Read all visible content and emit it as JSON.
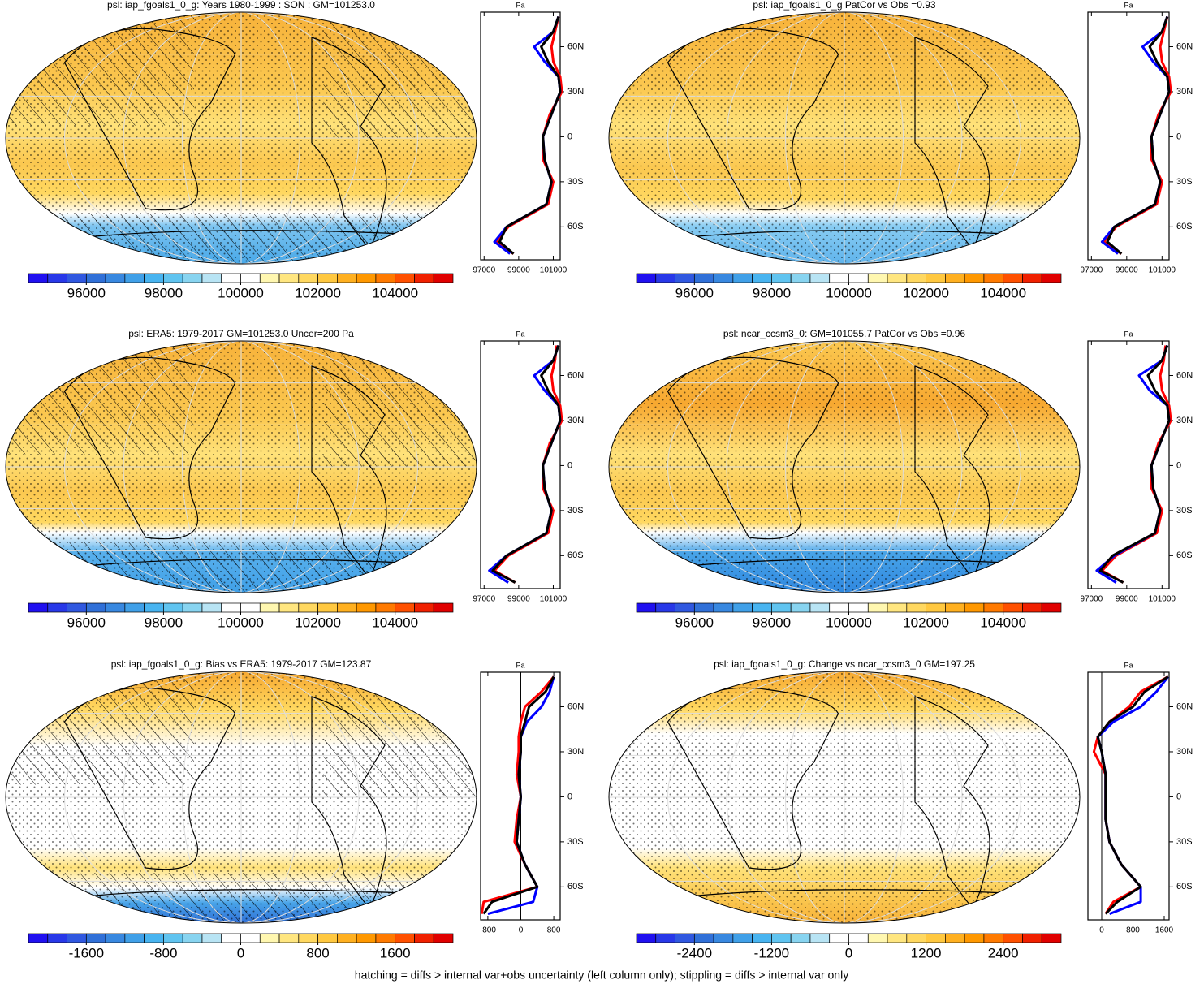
{
  "colorbar_colors": [
    "#2010f0",
    "#2838e8",
    "#3058e0",
    "#3070d8",
    "#3888e0",
    "#40a0e8",
    "#48b4f0",
    "#60c4f0",
    "#88d4f0",
    "#b8e4f4",
    "#ffffff",
    "#ffffff",
    "#fff7b0",
    "#ffe680",
    "#ffd860",
    "#ffc840",
    "#ffb020",
    "#ff9800",
    "#ff7a00",
    "#ff5000",
    "#f02000",
    "#e00000"
  ],
  "profile_ylim": [
    -82,
    83
  ],
  "profile_yticks": [
    {
      "value": 60,
      "label": "60N"
    },
    {
      "value": 30,
      "label": "30N"
    },
    0,
    {
      "value": -30,
      "label": "30S"
    },
    {
      "value": -60,
      "label": "60S"
    }
  ],
  "profile_lat": [
    80,
    70,
    60,
    50,
    40,
    30,
    15,
    0,
    -15,
    -30,
    -45,
    -60,
    -70,
    -78
  ],
  "panels": [
    {
      "title": "psl: iap_fgoals1_0_g: Years 1980-1999 : SON : GM=101253.0",
      "colorbar": {
        "lim": [
          94500,
          105500
        ],
        "ticks": [
          96000,
          98000,
          100000,
          102000,
          104000
        ]
      },
      "profile": {
        "unit": "Pa",
        "xlim": [
          96800,
          101400
        ],
        "xticks": [
          97000,
          99000,
          101000
        ],
        "series": [
          {
            "color": "#ff0000",
            "values": [
              101300,
              101100,
              100900,
              101000,
              101400,
              101500,
              100800,
              100400,
              100400,
              101000,
              100700,
              98400,
              97700,
              98700
            ]
          },
          {
            "color": "#0000ff",
            "values": [
              101300,
              101000,
              99900,
              100500,
              101300,
              101400,
              100900,
              100400,
              100500,
              100900,
              100600,
              98300,
              97600,
              98500
            ]
          },
          {
            "color": "#000000",
            "values": [
              101300,
              101000,
              100300,
              100700,
              101300,
              101400,
              100900,
              100400,
              100500,
              100900,
              100600,
              98300,
              97900,
              98700
            ]
          }
        ]
      }
    },
    {
      "title": "psl: iap_fgoals1_0_g PatCor vs Obs =0.93",
      "colorbar": {
        "lim": [
          94500,
          105500
        ],
        "ticks": [
          96000,
          98000,
          100000,
          102000,
          104000
        ]
      },
      "profile": {
        "unit": "Pa",
        "xlim": [
          96800,
          101400
        ],
        "xticks": [
          97000,
          99000,
          101000
        ],
        "series": [
          {
            "color": "#ff0000",
            "values": [
              101300,
              101100,
              100900,
              101000,
              101400,
              101500,
              100800,
              100400,
              100400,
              101000,
              100700,
              98400,
              97700,
              98700
            ]
          },
          {
            "color": "#0000ff",
            "values": [
              101300,
              101000,
              99900,
              100500,
              101300,
              101400,
              100900,
              100400,
              100500,
              100900,
              100600,
              98300,
              97600,
              98500
            ]
          },
          {
            "color": "#000000",
            "values": [
              101300,
              101000,
              100300,
              100700,
              101300,
              101400,
              100900,
              100400,
              100500,
              100900,
              100600,
              98300,
              97900,
              98700
            ]
          }
        ]
      }
    },
    {
      "title": "psl: ERA5: 1979-2017 GM=101253.0 Uncer=200 Pa",
      "colorbar": {
        "lim": [
          94500,
          105500
        ],
        "ticks": [
          96000,
          98000,
          100000,
          102000,
          104000
        ]
      },
      "profile": {
        "unit": "Pa",
        "xlim": [
          96800,
          101400
        ],
        "xticks": [
          97000,
          99000,
          101000
        ],
        "series": [
          {
            "color": "#ff0000",
            "values": [
              101200,
              101100,
              100900,
              101000,
              101400,
              101500,
              100800,
              100400,
              100400,
              101000,
              100700,
              98400,
              97600,
              98800
            ]
          },
          {
            "color": "#0000ff",
            "values": [
              101300,
              101000,
              99900,
              100500,
              101300,
              101400,
              100900,
              100400,
              100500,
              100900,
              100600,
              98300,
              97300,
              98400
            ]
          },
          {
            "color": "#000000",
            "values": [
              101300,
              101000,
              100300,
              100700,
              101300,
              101400,
              100900,
              100400,
              100500,
              100900,
              100600,
              98300,
              97500,
              98800
            ]
          }
        ]
      }
    },
    {
      "title": "psl: ncar_ccsm3_0: GM=101055.7 PatCor vs Obs =0.96",
      "colorbar": {
        "lim": [
          94500,
          105500
        ],
        "ticks": [
          96000,
          98000,
          100000,
          102000,
          104000
        ]
      },
      "profile": {
        "unit": "Pa",
        "xlim": [
          96800,
          101400
        ],
        "xticks": [
          97000,
          99000,
          101000
        ],
        "series": [
          {
            "color": "#ff0000",
            "values": [
              101200,
              101100,
              100900,
              101000,
              101400,
              101500,
              100800,
              100400,
              100400,
              101000,
              100700,
              98400,
              97600,
              98800
            ]
          },
          {
            "color": "#0000ff",
            "values": [
              101300,
              101000,
              99700,
              100300,
              101300,
              101400,
              100900,
              100400,
              100500,
              100900,
              100600,
              98300,
              97300,
              98400
            ]
          },
          {
            "color": "#000000",
            "values": [
              101300,
              101000,
              100200,
              100600,
              101300,
              101400,
              100900,
              100400,
              100500,
              100900,
              100600,
              98200,
              97500,
              98800
            ]
          }
        ]
      }
    },
    {
      "title": "psl: iap_fgoals1_0_g: Bias vs ERA5: 1979-2017  GM=123.87",
      "colorbar": {
        "lim": [
          -2200,
          2200
        ],
        "ticks": [
          -1600,
          -800,
          0,
          800,
          1600
        ]
      },
      "profile": {
        "unit": "Pa",
        "xlim": [
          -975,
          956
        ],
        "xticks": [
          -800,
          0,
          800
        ],
        "series": [
          {
            "color": "#ff0000",
            "values": [
              800,
              500,
              100,
              0,
              -50,
              -50,
              -100,
              0,
              -100,
              -150,
              100,
              400,
              -900,
              -950
            ]
          },
          {
            "color": "#0000ff",
            "values": [
              800,
              700,
              500,
              150,
              0,
              0,
              -50,
              0,
              -50,
              -100,
              100,
              400,
              300,
              -800
            ]
          },
          {
            "color": "#000000",
            "values": [
              800,
              600,
              200,
              100,
              0,
              0,
              -50,
              0,
              -50,
              -100,
              100,
              400,
              -700,
              -900
            ]
          }
        ]
      }
    },
    {
      "title": "psl: iap_fgoals1_0_g: Change vs ncar_ccsm3_0 GM=197.25",
      "colorbar": {
        "lim": [
          -3300,
          3300
        ],
        "ticks": [
          -2400,
          -1200,
          0,
          1200,
          2400
        ]
      },
      "profile": {
        "unit": "Pa",
        "xlim": [
          -353,
          1725
        ],
        "xticks": [
          0,
          800,
          1600
        ],
        "series": [
          {
            "color": "#ff0000",
            "values": [
              1700,
              1000,
              700,
              200,
              -100,
              -200,
              100,
              100,
              100,
              200,
              500,
              1000,
              300,
              100
            ]
          },
          {
            "color": "#0000ff",
            "values": [
              1700,
              1400,
              1000,
              300,
              -100,
              0,
              100,
              100,
              100,
              200,
              500,
              1000,
              1000,
              200
            ]
          },
          {
            "color": "#000000",
            "values": [
              1700,
              1100,
              800,
              200,
              -100,
              0,
              100,
              100,
              100,
              200,
              500,
              1000,
              400,
              100
            ]
          }
        ]
      }
    }
  ],
  "footnote": "hatching = diffs > internal var+obs uncertainty (left column only); stippling = diffs > internal var only"
}
